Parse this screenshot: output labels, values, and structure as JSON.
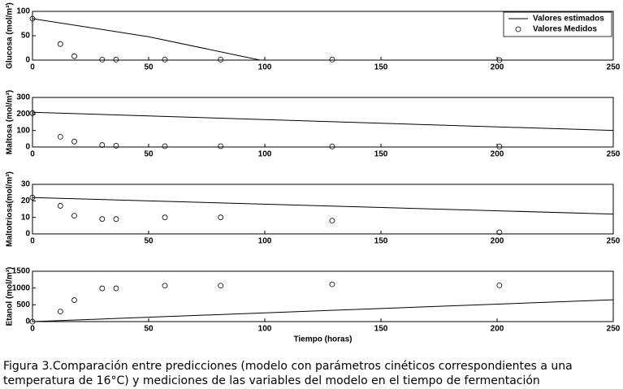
{
  "chart_data": [
    {
      "type": "line",
      "y_label": "Glucosa (mol/m³)",
      "xlim": [
        0,
        250
      ],
      "ylim": [
        0,
        100
      ],
      "xticks": [
        0,
        50,
        100,
        150,
        200,
        250
      ],
      "yticks": [
        0,
        50,
        100
      ],
      "legend": "upper right",
      "series": [
        {
          "name": "Valores estimados",
          "mode": "line",
          "color": "#000000",
          "x": [
            0,
            50,
            98,
            250
          ],
          "values": [
            85,
            48,
            0,
            0
          ]
        },
        {
          "name": "Valores Medidos",
          "mode": "markers",
          "color": "#000000",
          "x": [
            0,
            12,
            18,
            30,
            36,
            57,
            81,
            129,
            201
          ],
          "values": [
            85,
            33,
            8,
            1,
            1,
            1,
            1,
            1,
            0
          ]
        }
      ]
    },
    {
      "type": "line",
      "y_label": "Maltosa (mol/m³)",
      "xlim": [
        0,
        250
      ],
      "ylim": [
        0,
        300
      ],
      "xticks": [
        0,
        50,
        100,
        150,
        200,
        250
      ],
      "yticks": [
        0,
        100,
        200,
        300
      ],
      "series": [
        {
          "mode": "line",
          "color": "#000000",
          "x": [
            0,
            250
          ],
          "values": [
            210,
            100
          ]
        },
        {
          "mode": "markers",
          "color": "#000000",
          "x": [
            0,
            12,
            18,
            30,
            36,
            57,
            81,
            129,
            201
          ],
          "values": [
            205,
            62,
            33,
            12,
            8,
            5,
            5,
            3,
            3
          ]
        }
      ]
    },
    {
      "type": "line",
      "y_label": "Maltotriosa(mol/m³)",
      "xlim": [
        0,
        250
      ],
      "ylim": [
        0,
        30
      ],
      "xticks": [
        0,
        50,
        100,
        150,
        200,
        250
      ],
      "yticks": [
        0,
        10,
        20,
        30
      ],
      "series": [
        {
          "mode": "line",
          "color": "#000000",
          "x": [
            0,
            250
          ],
          "values": [
            22,
            12
          ]
        },
        {
          "mode": "markers",
          "color": "#000000",
          "x": [
            0,
            12,
            18,
            30,
            36,
            57,
            81,
            129,
            201
          ],
          "values": [
            22,
            17,
            11,
            9,
            9,
            10,
            10,
            8,
            1
          ]
        }
      ]
    },
    {
      "type": "line",
      "y_label": "Etanol (mol/m³)",
      "x_label": "Tiempo (horas)",
      "xlim": [
        0,
        250
      ],
      "ylim": [
        0,
        1500
      ],
      "xticks": [
        0,
        50,
        100,
        150,
        200,
        250
      ],
      "yticks": [
        0,
        500,
        1000,
        1500
      ],
      "series": [
        {
          "mode": "line",
          "color": "#000000",
          "x": [
            0,
            250
          ],
          "values": [
            0,
            650
          ]
        },
        {
          "mode": "markers",
          "color": "#000000",
          "x": [
            0,
            12,
            18,
            30,
            36,
            57,
            81,
            129,
            201
          ],
          "values": [
            0,
            300,
            640,
            990,
            990,
            1070,
            1070,
            1110,
            1080
          ]
        }
      ]
    }
  ],
  "caption": [
    "Figura 3.Comparación entre predicciones (modelo con parámetros cinéticos correspondientes a una",
    "temperatura de 16°C) y mediciones de las variables del modelo en el tiempo de fermentación"
  ]
}
